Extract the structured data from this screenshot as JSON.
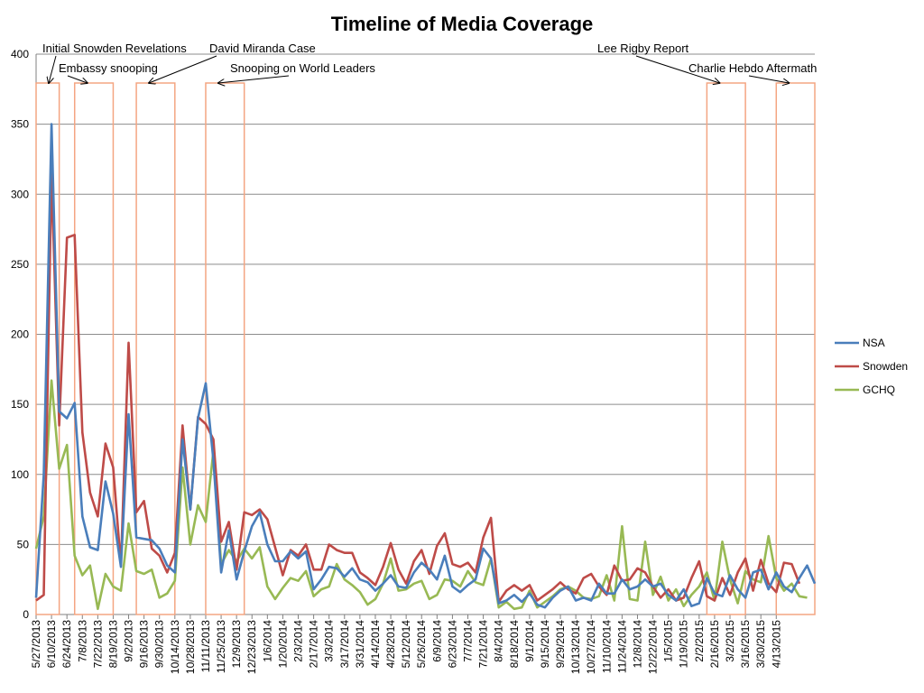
{
  "chart_data": {
    "type": "line",
    "title": "Timeline of Media Coverage",
    "ylim": [
      0,
      400
    ],
    "yticks": [
      0,
      50,
      100,
      150,
      200,
      250,
      300,
      350,
      400
    ],
    "grid": true,
    "legend_position": "right",
    "x_tick_labels": [
      "5/27/2013",
      "6/10/2013",
      "6/24/2013",
      "7/8/2013",
      "7/22/2013",
      "8/19/2013",
      "9/2/2013",
      "9/16/2013",
      "9/30/2013",
      "10/14/2013",
      "10/28/2013",
      "11/11/2013",
      "11/25/2013",
      "12/9/2013",
      "12/23/2013",
      "1/6/2014",
      "1/20/2014",
      "2/3/2014",
      "2/17/2014",
      "3/3/2014",
      "3/17/2014",
      "3/31/2014",
      "4/14/2014",
      "4/28/2014",
      "5/12/2014",
      "5/26/2014",
      "6/9/2014",
      "6/23/2014",
      "7/7/2014",
      "7/21/2014",
      "8/4/2014",
      "8/18/2014",
      "9/1/2014",
      "9/15/2014",
      "9/29/2014",
      "10/13/2014",
      "10/27/2014",
      "11/10/2014",
      "11/24/2014",
      "12/8/2014",
      "12/22/2014",
      "1/5/2015",
      "1/19/2015",
      "2/2/2015",
      "2/16/2015",
      "3/2/2015",
      "3/16/2015",
      "3/30/2015",
      "4/13/2015"
    ],
    "series": [
      {
        "name": "NSA",
        "color": "#4a7ebb",
        "values": [
          12,
          100,
          350,
          145,
          140,
          151,
          70,
          48,
          46,
          95,
          72,
          34,
          143,
          55,
          54,
          53,
          47,
          35,
          30,
          125,
          75,
          140,
          165,
          110,
          30,
          60,
          25,
          45,
          63,
          73,
          50,
          38,
          38,
          45,
          40,
          45,
          18,
          25,
          34,
          33,
          27,
          33,
          25,
          23,
          17,
          22,
          28,
          20,
          19,
          30,
          37,
          32,
          25,
          42,
          20,
          16,
          21,
          25,
          47,
          40,
          8,
          10,
          14,
          9,
          15,
          7,
          5,
          12,
          17,
          20,
          10,
          12,
          10,
          22,
          15,
          15,
          25,
          18,
          20,
          25,
          20,
          22,
          14,
          10,
          18,
          6,
          8,
          26,
          15,
          13,
          28,
          18,
          12,
          30,
          32,
          18,
          30,
          20,
          16,
          26,
          35,
          22
        ]
      },
      {
        "name": "Snowden",
        "color": "#be4b48",
        "values": [
          10,
          14,
          315,
          135,
          269,
          271,
          130,
          87,
          70,
          122,
          105,
          35,
          194,
          73,
          81,
          47,
          42,
          30,
          44,
          135,
          75,
          141,
          136,
          125,
          52,
          66,
          32,
          73,
          71,
          75,
          68,
          48,
          28,
          46,
          42,
          50,
          32,
          32,
          50,
          46,
          44,
          44,
          30,
          26,
          21,
          34,
          51,
          32,
          22,
          38,
          46,
          29,
          49,
          58,
          36,
          34,
          37,
          30,
          55,
          69,
          9,
          17,
          21,
          17,
          21,
          10,
          14,
          18,
          23,
          18,
          15,
          26,
          29,
          20,
          14,
          35,
          24,
          25,
          33,
          30,
          20,
          12,
          18,
          10,
          12,
          26,
          38,
          13,
          10,
          26,
          14,
          30,
          40,
          17,
          39,
          22,
          16,
          37,
          36,
          22
        ]
      },
      {
        "name": "GCHQ",
        "color": "#98b954",
        "values": [
          47,
          70,
          167,
          104,
          121,
          42,
          28,
          35,
          4,
          29,
          20,
          17,
          65,
          31,
          29,
          32,
          12,
          15,
          24,
          105,
          50,
          78,
          66,
          117,
          36,
          46,
          38,
          47,
          40,
          48,
          20,
          11,
          19,
          26,
          24,
          31,
          13,
          18,
          20,
          36,
          25,
          21,
          16,
          7,
          11,
          22,
          40,
          17,
          18,
          22,
          24,
          11,
          14,
          25,
          24,
          20,
          31,
          23,
          21,
          40,
          5,
          9,
          4,
          5,
          17,
          5,
          9,
          13,
          18,
          20,
          17,
          12,
          11,
          13,
          28,
          10,
          63,
          11,
          10,
          52,
          14,
          27,
          10,
          18,
          6,
          14,
          20,
          30,
          10,
          52,
          25,
          8,
          31,
          25,
          23,
          56,
          26,
          17,
          22,
          13,
          12
        ]
      }
    ],
    "annotations": [
      {
        "label": "Initial Snowden Revelations",
        "start_index": 0,
        "end_index": 3
      },
      {
        "label": "Embassy snooping",
        "start_index": 5,
        "end_index": 10
      },
      {
        "label": "David Miranda Case",
        "start_index": 13,
        "end_index": 18
      },
      {
        "label": "Snooping on World Leaders",
        "start_index": 22,
        "end_index": 27
      },
      {
        "label": "Lee Rigby Report",
        "start_index": 87,
        "end_index": 92
      },
      {
        "label": "Charlie Hebdo Aftermath",
        "start_index": 96,
        "end_index": 101
      }
    ]
  }
}
